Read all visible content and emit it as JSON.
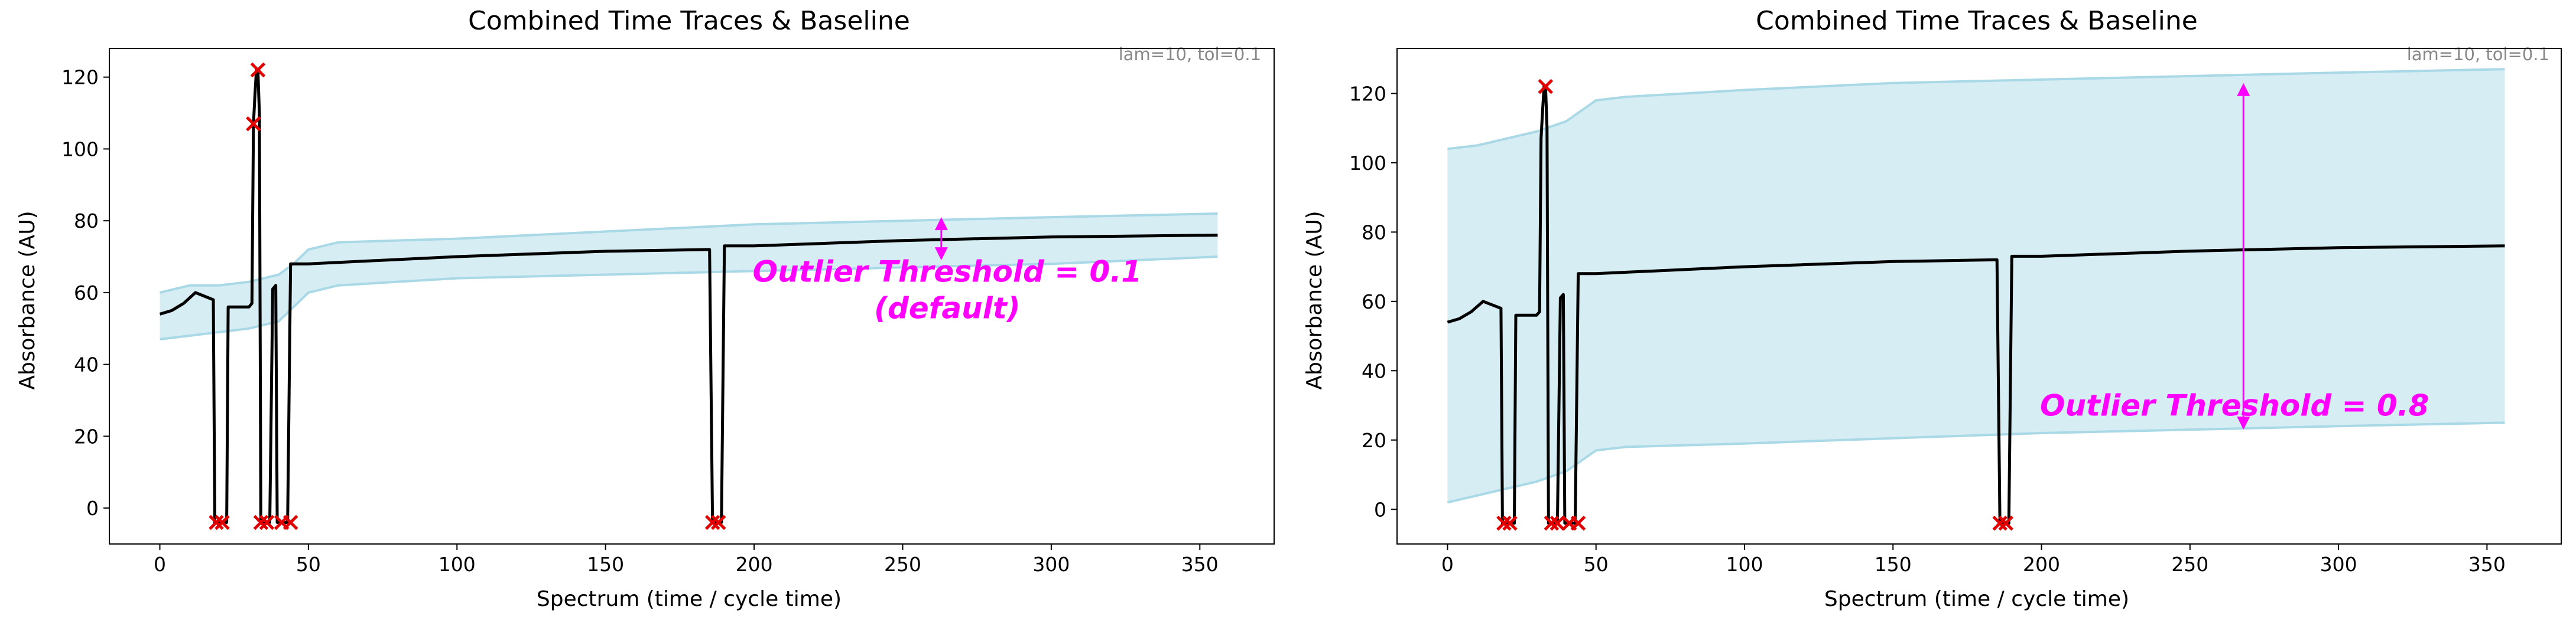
{
  "colors": {
    "trace": "#000000",
    "band_fill": "#d6eef3",
    "band_edge": "#a9d8e6",
    "outlier": "#e00000",
    "annotation": "#ff00ff",
    "note": "#888888"
  },
  "chart_data": [
    {
      "type": "line",
      "title": "Combined Time Traces & Baseline",
      "xlabel": "Spectrum (time / cycle time)",
      "ylabel": "Absorbance (AU)",
      "xlim": [
        -17,
        375
      ],
      "ylim": [
        -10,
        128
      ],
      "xticks": [
        0,
        50,
        100,
        150,
        200,
        250,
        300,
        350
      ],
      "yticks": [
        0,
        20,
        40,
        60,
        80,
        100,
        120
      ],
      "grid": false,
      "corner_note": "lam=10, tol=0.1",
      "annotation": {
        "lines": [
          "Outlier Threshold = 0.1",
          "(default)"
        ],
        "anchor": [
          265,
          63
        ],
        "arrow": {
          "x": 263,
          "y_low": 69,
          "y_high": 81
        }
      },
      "series": [
        {
          "role": "trace",
          "x": [
            0,
            4,
            8,
            12,
            15,
            18,
            18.5,
            19,
            20,
            21,
            22,
            22.5,
            23,
            26,
            30,
            31,
            31.5,
            32,
            32.5,
            33,
            33.5,
            34,
            34.5,
            35,
            36,
            37,
            38,
            39,
            39.5,
            40,
            42,
            43,
            44,
            50,
            100,
            150,
            185,
            186,
            187,
            188,
            189,
            190,
            200,
            250,
            300,
            356
          ],
          "y": [
            54,
            55,
            57,
            60,
            59,
            58,
            -4,
            -4,
            -4,
            -4,
            -4,
            -4,
            56,
            56,
            56,
            57,
            107,
            115,
            122,
            122,
            110,
            -4,
            -4,
            -4,
            -4,
            -4,
            61,
            62,
            -4,
            -4,
            -4,
            -4,
            68,
            68,
            70,
            71.5,
            72,
            -4,
            -4,
            -4,
            -4,
            73,
            73,
            74.5,
            75.5,
            76
          ]
        },
        {
          "role": "band_upper",
          "x": [
            0,
            10,
            20,
            30,
            40,
            45,
            50,
            60,
            100,
            150,
            200,
            250,
            300,
            356
          ],
          "y": [
            60,
            62,
            62,
            63,
            65,
            68,
            72,
            74,
            75,
            77,
            79,
            80,
            81,
            82
          ]
        },
        {
          "role": "band_lower",
          "x": [
            0,
            10,
            20,
            30,
            40,
            45,
            50,
            60,
            100,
            150,
            200,
            250,
            300,
            356
          ],
          "y": [
            47,
            48,
            49,
            50,
            52,
            56,
            60,
            62,
            64,
            65,
            66,
            67,
            68,
            70
          ]
        },
        {
          "role": "outliers",
          "x": [
            19,
            21,
            31.5,
            33,
            34,
            36,
            41,
            44,
            186,
            188
          ],
          "y": [
            -4,
            -4,
            107,
            122,
            -4,
            -4,
            -4,
            -4,
            -4,
            -4
          ]
        }
      ]
    },
    {
      "type": "line",
      "title": "Combined Time Traces & Baseline",
      "xlabel": "Spectrum (time / cycle time)",
      "ylabel": "Absorbance (AU)",
      "xlim": [
        -17,
        375
      ],
      "ylim": [
        -10,
        133
      ],
      "xticks": [
        0,
        50,
        100,
        150,
        200,
        250,
        300,
        350
      ],
      "yticks": [
        0,
        20,
        40,
        60,
        80,
        100,
        120
      ],
      "grid": false,
      "corner_note": "lam=10, tol=0.1",
      "annotation": {
        "lines": [
          "Outlier Threshold = 0.8"
        ],
        "anchor": [
          265,
          27
        ],
        "arrow": {
          "x": 268,
          "y_low": 23,
          "y_high": 123
        }
      },
      "series": [
        {
          "role": "trace",
          "x": [
            0,
            4,
            8,
            12,
            15,
            18,
            18.5,
            19,
            20,
            21,
            22,
            22.5,
            23,
            26,
            30,
            31,
            31.5,
            32,
            32.5,
            33,
            33.5,
            34,
            34.5,
            35,
            36,
            37,
            38,
            39,
            39.5,
            40,
            42,
            43,
            44,
            50,
            100,
            150,
            185,
            186,
            187,
            188,
            189,
            190,
            200,
            250,
            300,
            356
          ],
          "y": [
            54,
            55,
            57,
            60,
            59,
            58,
            -4,
            -4,
            -4,
            -4,
            -4,
            -4,
            56,
            56,
            56,
            57,
            107,
            115,
            122,
            122,
            110,
            -4,
            -4,
            -4,
            -4,
            -4,
            61,
            62,
            -4,
            -4,
            -4,
            -4,
            68,
            68,
            70,
            71.5,
            72,
            -4,
            -4,
            -4,
            -4,
            73,
            73,
            74.5,
            75.5,
            76
          ]
        },
        {
          "role": "band_upper",
          "x": [
            0,
            10,
            20,
            30,
            40,
            45,
            50,
            60,
            100,
            150,
            200,
            250,
            300,
            356
          ],
          "y": [
            104,
            105,
            107,
            109,
            112,
            115,
            118,
            119,
            121,
            123,
            124,
            125,
            126,
            127
          ]
        },
        {
          "role": "band_lower",
          "x": [
            0,
            10,
            20,
            30,
            40,
            45,
            50,
            60,
            100,
            150,
            200,
            250,
            300,
            356
          ],
          "y": [
            2,
            4,
            6,
            8,
            11,
            14,
            17,
            18,
            19,
            20.5,
            22,
            23,
            24,
            25
          ]
        },
        {
          "role": "outliers",
          "x": [
            19,
            21,
            33,
            35,
            37,
            41,
            44,
            186,
            188
          ],
          "y": [
            -4,
            -4,
            122,
            -4,
            -4,
            -4,
            -4,
            -4,
            -4
          ]
        }
      ]
    }
  ]
}
